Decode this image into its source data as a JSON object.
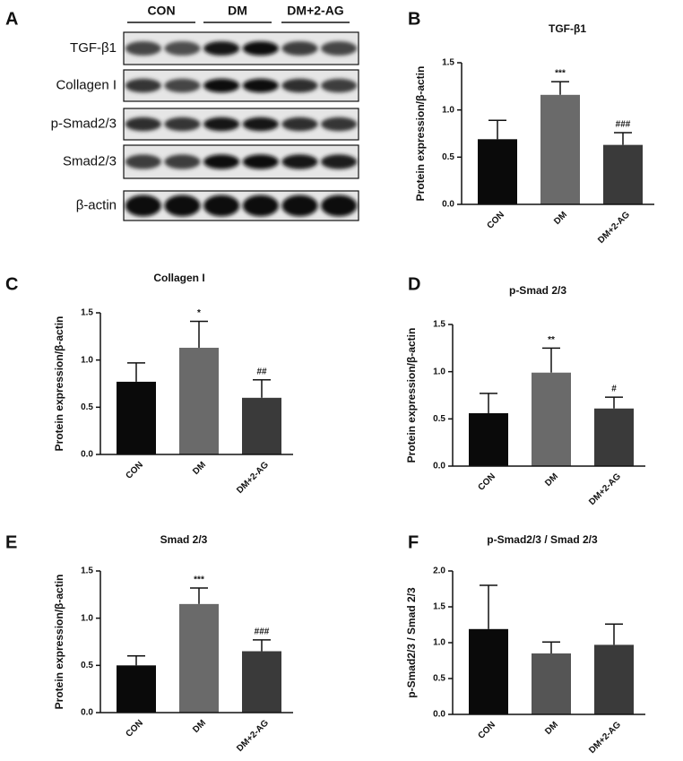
{
  "panel_labels": [
    "A",
    "B",
    "C",
    "D",
    "E",
    "F"
  ],
  "blot": {
    "groups": [
      "CON",
      "DM",
      "DM+2-AG"
    ],
    "rows": [
      "TGF-β1",
      "Collagen I",
      "p-Smad2/3",
      "Smad2/3",
      "β-actin"
    ]
  },
  "chart_data": [
    {
      "type": "bar",
      "title": "TGF-β1",
      "ylabel": "Protein expression/β-actin",
      "categories": [
        "CON",
        "DM",
        "DM+2-AG"
      ],
      "values": [
        0.69,
        1.16,
        0.63
      ],
      "errors": [
        0.2,
        0.14,
        0.13
      ],
      "annotations": [
        null,
        "***",
        "###"
      ],
      "colors": [
        "#0a0a0a",
        "#6a6a6a",
        "#3a3a3a"
      ],
      "ylim": [
        0,
        1.5
      ],
      "yticks": [
        {
          "value": 0,
          "label": "0.0"
        },
        0.5,
        {
          "value": 1,
          "label": "1.0"
        },
        1.5
      ]
    },
    {
      "type": "bar",
      "title": "Collagen I",
      "ylabel": "Protein expression/β-actin",
      "categories": [
        "CON",
        "DM",
        "DM+2-AG"
      ],
      "values": [
        0.77,
        1.13,
        0.6
      ],
      "errors": [
        0.2,
        0.28,
        0.19
      ],
      "annotations": [
        null,
        "*",
        "##"
      ],
      "colors": [
        "#0a0a0a",
        "#6a6a6a",
        "#3a3a3a"
      ],
      "ylim": [
        0,
        1.5
      ],
      "yticks": [
        {
          "value": 0,
          "label": "0.0"
        },
        0.5,
        {
          "value": 1,
          "label": "1.0"
        },
        1.5
      ]
    },
    {
      "type": "bar",
      "title": "p-Smad 2/3",
      "ylabel": "Protein expression/β-actin",
      "categories": [
        "CON",
        "DM",
        "DM+2-AG"
      ],
      "values": [
        0.56,
        0.99,
        0.61
      ],
      "errors": [
        0.21,
        0.26,
        0.12
      ],
      "annotations": [
        null,
        "**",
        "#"
      ],
      "colors": [
        "#0a0a0a",
        "#6a6a6a",
        "#3a3a3a"
      ],
      "ylim": [
        0,
        1.5
      ],
      "yticks": [
        {
          "value": 0,
          "label": "0.0"
        },
        0.5,
        {
          "value": 1,
          "label": "1.0"
        },
        1.5
      ]
    },
    {
      "type": "bar",
      "title": "Smad 2/3",
      "ylabel": "Protein expression/β-actin",
      "categories": [
        "CON",
        "DM",
        "DM+2-AG"
      ],
      "values": [
        0.5,
        1.15,
        0.65
      ],
      "errors": [
        0.1,
        0.17,
        0.12
      ],
      "annotations": [
        null,
        "***",
        "###"
      ],
      "colors": [
        "#0a0a0a",
        "#6a6a6a",
        "#3a3a3a"
      ],
      "ylim": [
        0,
        1.5
      ],
      "yticks": [
        {
          "value": 0,
          "label": "0.0"
        },
        0.5,
        {
          "value": 1,
          "label": "1.0"
        },
        1.5
      ]
    },
    {
      "type": "bar",
      "title": "p-Smad2/3 / Smad 2/3",
      "ylabel": "p-Smad2/3 / Smad 2/3",
      "categories": [
        "CON",
        "DM",
        "DM+2-AG"
      ],
      "values": [
        1.19,
        0.85,
        0.97
      ],
      "errors": [
        0.61,
        0.16,
        0.29
      ],
      "colors": [
        "#0a0a0a",
        "#555555",
        "#3a3a3a"
      ],
      "ylim": [
        0,
        2
      ],
      "yticks": [
        {
          "value": 0,
          "label": "0.0"
        },
        0.5,
        {
          "value": 1,
          "label": "1.0"
        },
        1.5,
        {
          "value": 2,
          "label": "2.0"
        }
      ]
    }
  ]
}
